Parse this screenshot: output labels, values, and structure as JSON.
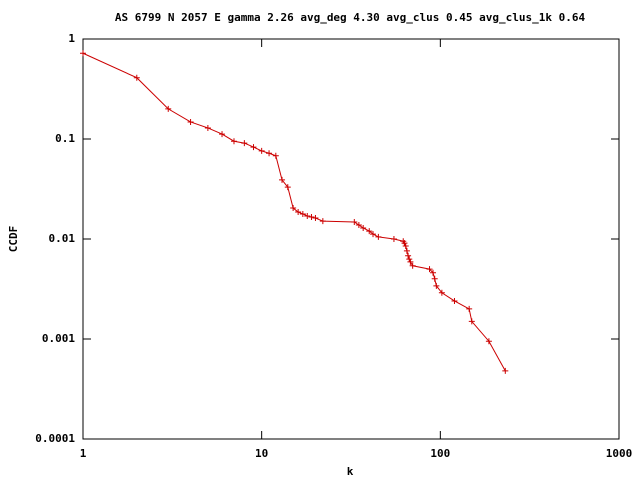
{
  "chart_data": {
    "type": "line",
    "title": "AS 6799 N 2057 E gamma 2.26 avg_deg 4.30 avg_clus 0.45 avg_clus_1k 0.64",
    "x_label": "k",
    "y_label": "CCDF",
    "log_x": true,
    "log_y": true,
    "xlim": [
      1,
      1000
    ],
    "ylim": [
      0.0001,
      1
    ],
    "xticks": [
      1,
      10,
      100,
      1000
    ],
    "yticks": [
      0.0001,
      0.001,
      0.01,
      0.1,
      1
    ],
    "series": [
      {
        "color": "#cc0000",
        "x": [
          1,
          2,
          3,
          4,
          5,
          6,
          7,
          8,
          9,
          10,
          11,
          12,
          13,
          14,
          15,
          16,
          17,
          18,
          19,
          20,
          22,
          33,
          35,
          37,
          40,
          42,
          45,
          55,
          62,
          63,
          64,
          65,
          66,
          67,
          68,
          70,
          87,
          91,
          93,
          95,
          102,
          120,
          145,
          150,
          187,
          231
        ],
        "y": [
          0.72,
          0.41,
          0.2,
          0.148,
          0.129,
          0.112,
          0.095,
          0.091,
          0.083,
          0.076,
          0.072,
          0.068,
          0.039,
          0.033,
          0.0204,
          0.0186,
          0.0178,
          0.017,
          0.0166,
          0.0162,
          0.0151,
          0.0148,
          0.0138,
          0.0129,
          0.012,
          0.0112,
          0.0105,
          0.01,
          0.0095,
          0.0091,
          0.0085,
          0.0076,
          0.0068,
          0.0063,
          0.0059,
          0.0054,
          0.005,
          0.0046,
          0.004,
          0.0034,
          0.0029,
          0.0024,
          0.002,
          0.0015,
          0.00095,
          0.00048
        ]
      }
    ]
  }
}
